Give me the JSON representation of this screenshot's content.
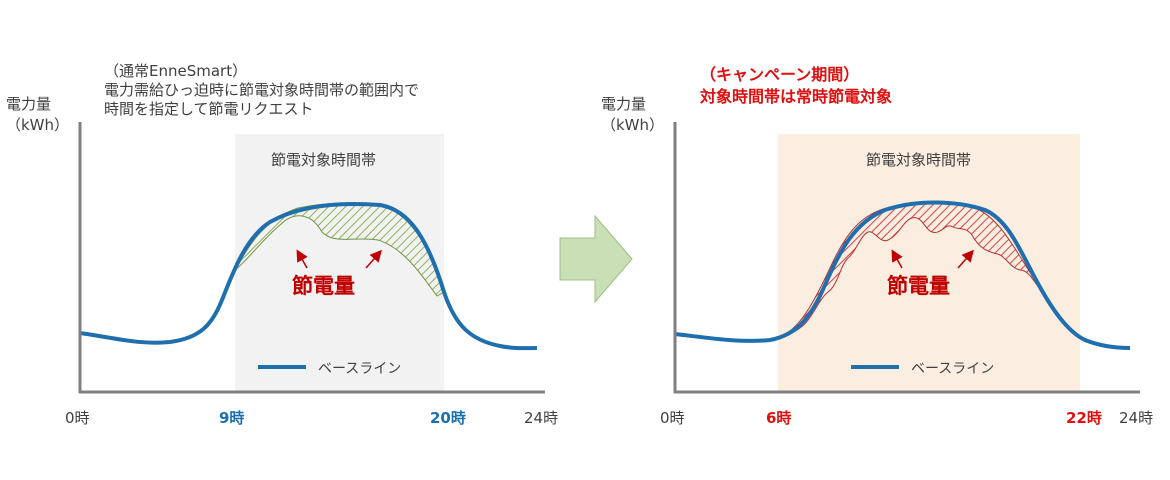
{
  "left_panel": {
    "y_axis_title": [
      "電力量",
      "（kWh）"
    ],
    "note": [
      "（通常EnneSmart）",
      "電力需給ひっ迫時に節電対象時間帯の範囲内で",
      "時間を指定して節電リクエスト"
    ],
    "band_label": "節電対象時間帯",
    "saving_label": "節電量",
    "legend_label": "ベースライン",
    "ticks": {
      "start": "0時",
      "band_start": "9時",
      "band_end": "20時",
      "end": "24時"
    },
    "colors": {
      "band": "#f2f2f2",
      "saving_hatch": "#8db45a",
      "baseline": "#1f6fae"
    }
  },
  "right_panel": {
    "y_axis_title": [
      "電力量",
      "（kWh）"
    ],
    "campaign": [
      "（キャンペーン期間）",
      "対象時間帯は常時節電対象"
    ],
    "band_label": "節電対象時間帯",
    "saving_label": "節電量",
    "legend_label": "ベースライン",
    "ticks": {
      "start": "0時",
      "band_start": "6時",
      "band_end": "22時",
      "end": "24時"
    },
    "colors": {
      "band": "#fbeee0",
      "saving_hatch": "#d9434a",
      "baseline": "#1f6fae"
    }
  },
  "arrow_icon": {
    "name": "right-arrow-icon",
    "color": "#c8e0b4"
  }
}
